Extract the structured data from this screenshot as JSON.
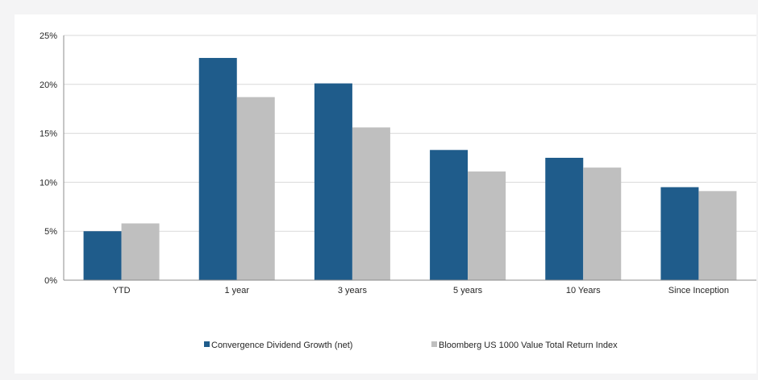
{
  "chart_data": {
    "type": "bar",
    "title": "",
    "xlabel": "",
    "ylabel": "",
    "categories": [
      "YTD",
      "1 year",
      "3 years",
      "5 years",
      "10 Years",
      "Since Inception"
    ],
    "series": [
      {
        "name": "Convergence Dividend Growth (net)",
        "color": "#1f5c8b",
        "values": [
          5.0,
          22.7,
          20.1,
          13.3,
          12.5,
          9.5
        ]
      },
      {
        "name": "Bloomberg US 1000 Value Total Return Index",
        "color": "#bfbfbf",
        "values": [
          5.8,
          18.7,
          15.6,
          11.1,
          11.5,
          9.1
        ]
      }
    ],
    "ylim": [
      0,
      25
    ],
    "yticks": [
      0,
      5,
      10,
      15,
      20,
      25
    ],
    "ytick_labels": [
      "0%",
      "5%",
      "10%",
      "15%",
      "20%",
      "25%"
    ],
    "grid": true,
    "legend_position": "bottom"
  }
}
